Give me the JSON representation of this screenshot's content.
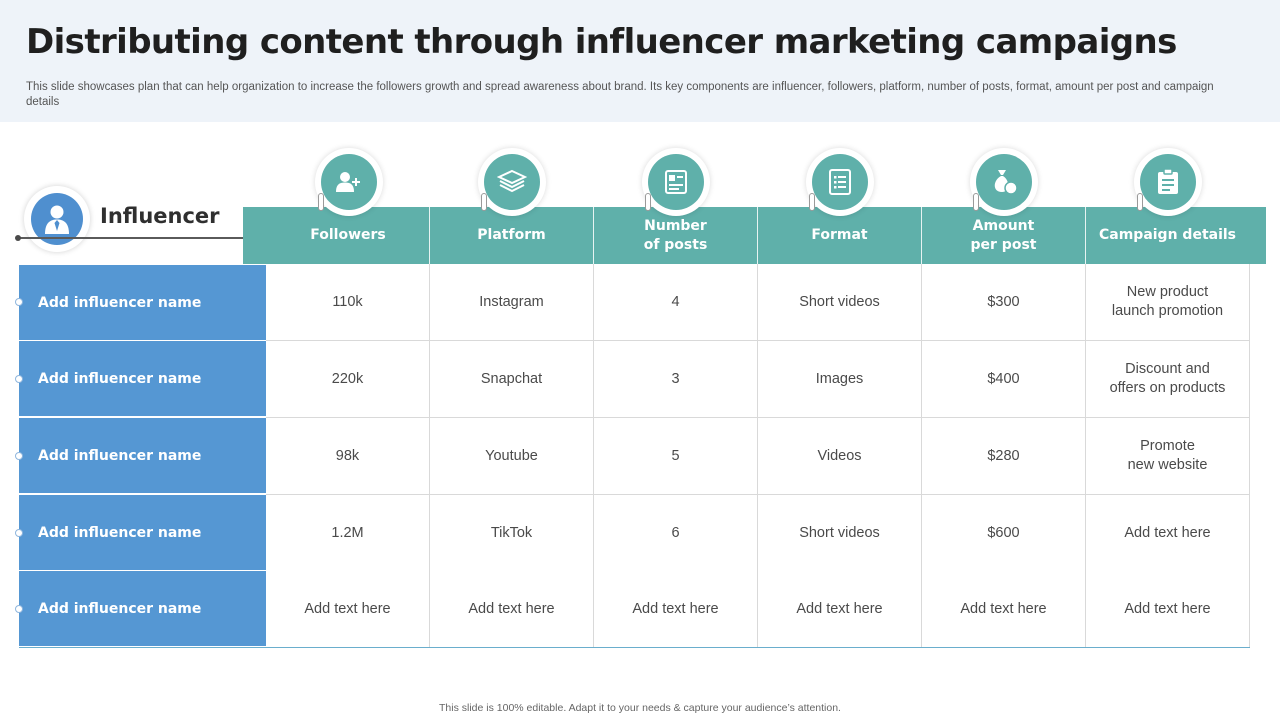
{
  "slide": {
    "title": "Distributing content through influencer marketing campaigns",
    "subtitle": "This slide showcases plan that can help organization to increase the followers growth and spread awareness about brand. Its key components are influencer, followers, platform, number of posts, format, amount per post and campaign details",
    "footer": "This slide is 100% editable.  Adapt it to your needs & capture your audience’s attention."
  },
  "influencer": {
    "label": "Influencer",
    "icon": "person-icon"
  },
  "columns": [
    {
      "label": "Followers",
      "icon": "add-user-icon"
    },
    {
      "label": "Platform",
      "icon": "layers-icon"
    },
    {
      "label": "Number\nof posts",
      "icon": "posts-icon"
    },
    {
      "label": "Format",
      "icon": "document-list-icon"
    },
    {
      "label": "Amount\nper post",
      "icon": "money-bag-icon"
    },
    {
      "label": "Campaign details",
      "icon": "clipboard-icon"
    }
  ],
  "rows": [
    {
      "name": "Add influencer name",
      "cells": [
        "110k",
        "Instagram",
        "4",
        "Short videos",
        "$300",
        "New product\nlaunch promotion"
      ]
    },
    {
      "name": "Add influencer name",
      "cells": [
        "220k",
        "Snapchat",
        "3",
        "Images",
        "$400",
        "Discount and\noffers on products"
      ]
    },
    {
      "name": "Add influencer name",
      "cells": [
        "98k",
        "Youtube",
        "5",
        "Videos",
        "$280",
        "Promote\nnew website"
      ]
    },
    {
      "name": "Add influencer name",
      "cells": [
        "1.2M",
        "TikTok",
        "6",
        "Short videos",
        "$600",
        "Add text here"
      ]
    },
    {
      "name": "Add influencer name",
      "cells": [
        "Add text here",
        "Add text here",
        "Add text here",
        "Add text here",
        "Add text here",
        "Add text here"
      ]
    }
  ],
  "colors": {
    "header_teal": "#5fb0aa",
    "row_blue": "#5597d3",
    "band": "#eef3f9"
  }
}
